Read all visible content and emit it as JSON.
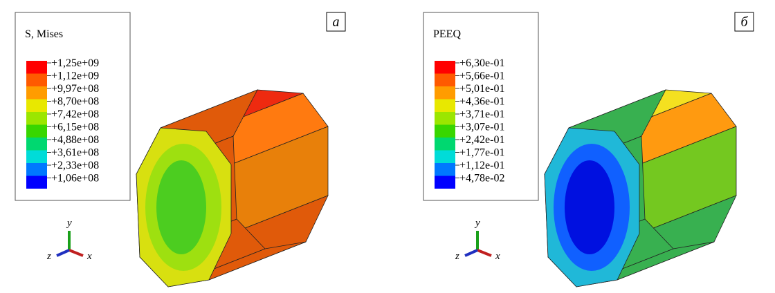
{
  "panels": [
    {
      "label": "а",
      "legend": {
        "title": "S, Mises",
        "levels": [
          "+1,25e+09",
          "+1,12e+09",
          "+9,97e+08",
          "+8,70e+08",
          "+7,42e+08",
          "+6,15e+08",
          "+4,88e+08",
          "+3,61e+08",
          "+2,33e+08",
          "+1,06e+08"
        ]
      },
      "triad": {
        "x": "x",
        "y": "y",
        "z": "z"
      }
    },
    {
      "label": "б",
      "legend": {
        "title": "PEEQ",
        "levels": [
          "+6,30e-01",
          "+5,66e-01",
          "+5,01e-01",
          "+4,36e-01",
          "+3,71e-01",
          "+3,07e-01",
          "+2,42e-01",
          "+1,77e-01",
          "+1,12e-01",
          "+4,78e-02"
        ]
      },
      "triad": {
        "x": "x",
        "y": "y",
        "z": "z"
      }
    }
  ]
}
